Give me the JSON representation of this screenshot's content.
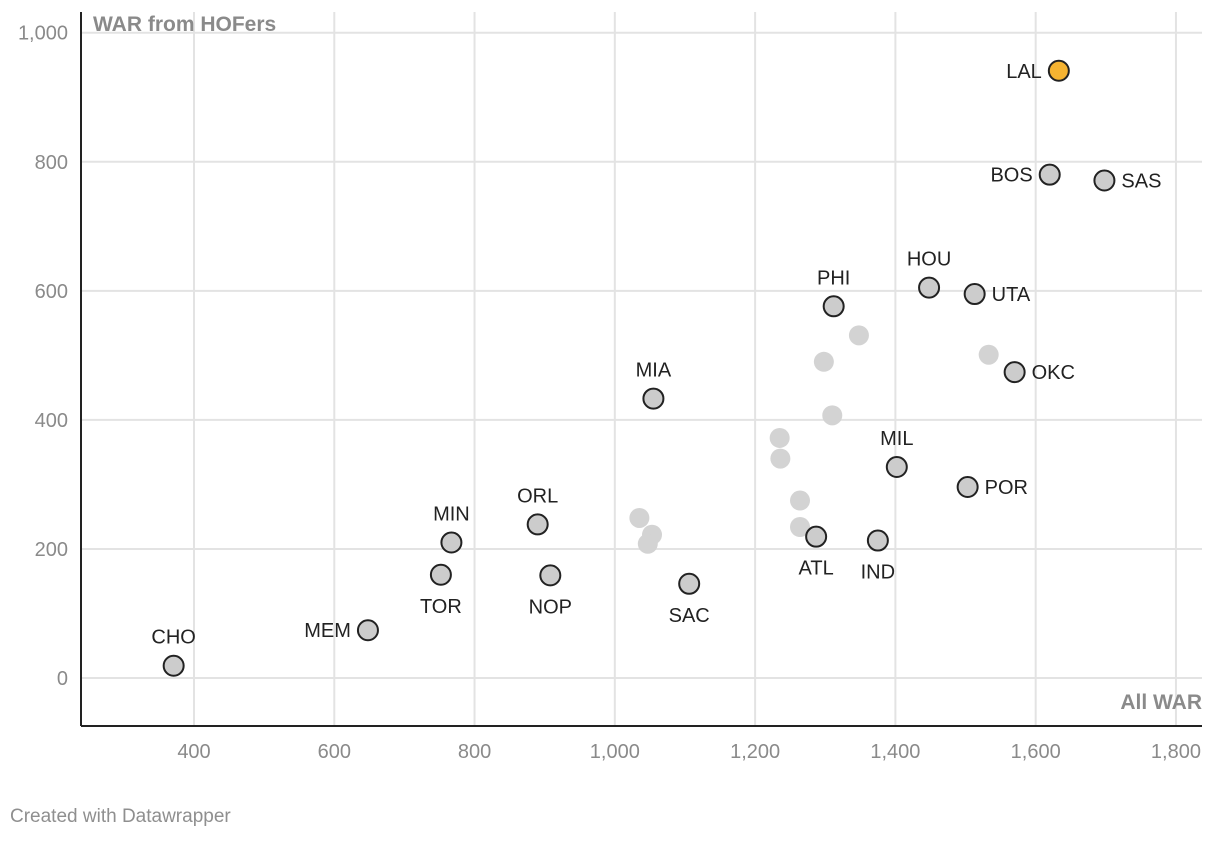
{
  "chart_data": {
    "type": "scatter",
    "title": "",
    "xlabel": "All WAR",
    "ylabel": "WAR from HOFers",
    "xlim": [
      240,
      1830
    ],
    "ylim": [
      -75,
      1035
    ],
    "xticks": [
      400,
      600,
      800,
      1000,
      1200,
      1400,
      1600,
      1800
    ],
    "xtick_labels": [
      "400",
      "600",
      "800",
      "1,000",
      "1,200",
      "1,400",
      "1,600",
      "1,800"
    ],
    "yticks": [
      0,
      200,
      400,
      600,
      800,
      1000
    ],
    "ytick_labels": [
      "0",
      "200",
      "400",
      "600",
      "800",
      "1,000"
    ],
    "colors": {
      "highlight": "#f5b331",
      "labeled": "#cccccc",
      "faded": "#d3d3d3",
      "outline": "#222222"
    },
    "points": [
      {
        "label": "LAL",
        "x": 1633,
        "y": 941,
        "highlight": true,
        "pos": "left"
      },
      {
        "label": "BOS",
        "x": 1620,
        "y": 780,
        "pos": "left"
      },
      {
        "label": "SAS",
        "x": 1698,
        "y": 771,
        "pos": "right"
      },
      {
        "label": "HOU",
        "x": 1448,
        "y": 605,
        "pos": "top"
      },
      {
        "label": "UTA",
        "x": 1513,
        "y": 595,
        "pos": "right"
      },
      {
        "label": "PHI",
        "x": 1312,
        "y": 576,
        "pos": "top"
      },
      {
        "label": "OKC",
        "x": 1570,
        "y": 474,
        "pos": "right"
      },
      {
        "label": "MIA",
        "x": 1055,
        "y": 433,
        "pos": "top"
      },
      {
        "label": "MIL",
        "x": 1402,
        "y": 327,
        "pos": "top"
      },
      {
        "label": "POR",
        "x": 1503,
        "y": 296,
        "pos": "right"
      },
      {
        "label": "ORL",
        "x": 890,
        "y": 238,
        "pos": "top"
      },
      {
        "label": "MIN",
        "x": 767,
        "y": 210,
        "pos": "top"
      },
      {
        "label": "ATL",
        "x": 1287,
        "y": 219,
        "pos": "bottom"
      },
      {
        "label": "IND",
        "x": 1375,
        "y": 213,
        "pos": "bottom"
      },
      {
        "label": "TOR",
        "x": 752,
        "y": 160,
        "pos": "bottom"
      },
      {
        "label": "NOP",
        "x": 908,
        "y": 159,
        "pos": "bottom"
      },
      {
        "label": "SAC",
        "x": 1106,
        "y": 146,
        "pos": "bottom"
      },
      {
        "label": "MEM",
        "x": 648,
        "y": 74,
        "pos": "left"
      },
      {
        "label": "CHO",
        "x": 371,
        "y": 19,
        "pos": "top"
      }
    ],
    "unlabeled_points": [
      {
        "x": 1348,
        "y": 531
      },
      {
        "x": 1298,
        "y": 490
      },
      {
        "x": 1533,
        "y": 501
      },
      {
        "x": 1310,
        "y": 407
      },
      {
        "x": 1235,
        "y": 372
      },
      {
        "x": 1236,
        "y": 340
      },
      {
        "x": 1264,
        "y": 275
      },
      {
        "x": 1264,
        "y": 234
      },
      {
        "x": 1035,
        "y": 248
      },
      {
        "x": 1053,
        "y": 222
      },
      {
        "x": 1047,
        "y": 208
      }
    ]
  },
  "footer": {
    "credit": "Created with Datawrapper"
  }
}
